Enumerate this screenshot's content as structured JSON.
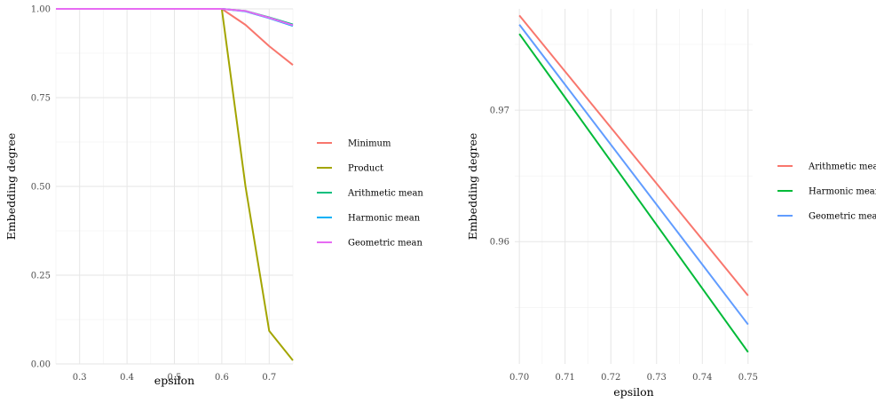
{
  "chart_data": [
    {
      "type": "line",
      "xlabel": "epsilon",
      "ylabel": "Embedding degree",
      "xlim": [
        0.25,
        0.75
      ],
      "ylim": [
        0,
        1
      ],
      "x_ticks": [
        "0.3",
        "0.4",
        "0.5",
        "0.6",
        "0.7"
      ],
      "x_tick_values": [
        0.3,
        0.4,
        0.5,
        0.6,
        0.7
      ],
      "y_ticks": [
        "0.00",
        "0.25",
        "0.50",
        "0.75",
        "1.00"
      ],
      "y_tick_values": [
        0,
        0.25,
        0.5,
        0.75,
        1.0
      ],
      "grid": true,
      "legend_position": "right",
      "x": [
        0.25,
        0.3,
        0.35,
        0.4,
        0.45,
        0.5,
        0.55,
        0.6,
        0.65,
        0.7,
        0.75
      ],
      "series": [
        {
          "name": "Minimum",
          "color": "#F8766D",
          "values": [
            1,
            1,
            1,
            1,
            1,
            1,
            1,
            1,
            0.955,
            0.895,
            0.842
          ]
        },
        {
          "name": "Product",
          "color": "#A3A500",
          "values": [
            1,
            1,
            1,
            1,
            1,
            1,
            1,
            1,
            0.5,
            0.093,
            0.01
          ]
        },
        {
          "name": "Arithmetic mean",
          "color": "#00BF7D",
          "values": [
            1,
            1,
            1,
            1,
            1,
            1,
            1,
            1,
            0.994,
            0.976,
            0.956
          ]
        },
        {
          "name": "Harmonic mean",
          "color": "#00B0F6",
          "values": [
            1,
            1,
            1,
            1,
            1,
            1,
            1,
            1,
            0.993,
            0.974,
            0.952
          ]
        },
        {
          "name": "Geometric mean",
          "color": "#E76BF3",
          "values": [
            1,
            1,
            1,
            1,
            1,
            1,
            1,
            1,
            0.994,
            0.975,
            0.954
          ]
        }
      ]
    },
    {
      "type": "line",
      "xlabel": "epsilon",
      "ylabel": "Embedding degree",
      "xlim": [
        0.699,
        0.751
      ],
      "ylim": [
        0.9507,
        0.9777
      ],
      "x_ticks": [
        "0.70",
        "0.71",
        "0.72",
        "0.73",
        "0.74",
        "0.75"
      ],
      "x_tick_values": [
        0.7,
        0.71,
        0.72,
        0.73,
        0.74,
        0.75
      ],
      "y_ticks": [
        "0.96",
        "0.97"
      ],
      "y_tick_values": [
        0.96,
        0.97
      ],
      "grid": true,
      "legend_position": "right",
      "x": [
        0.7,
        0.75
      ],
      "series": [
        {
          "name": "Arithmetic mean",
          "color": "#F8766D",
          "values": [
            0.9772,
            0.9559
          ]
        },
        {
          "name": "Harmonic mean",
          "color": "#00BA38",
          "values": [
            0.9758,
            0.9516
          ]
        },
        {
          "name": "Geometric mean",
          "color": "#619CFF",
          "values": [
            0.9765,
            0.9537
          ]
        }
      ]
    }
  ]
}
